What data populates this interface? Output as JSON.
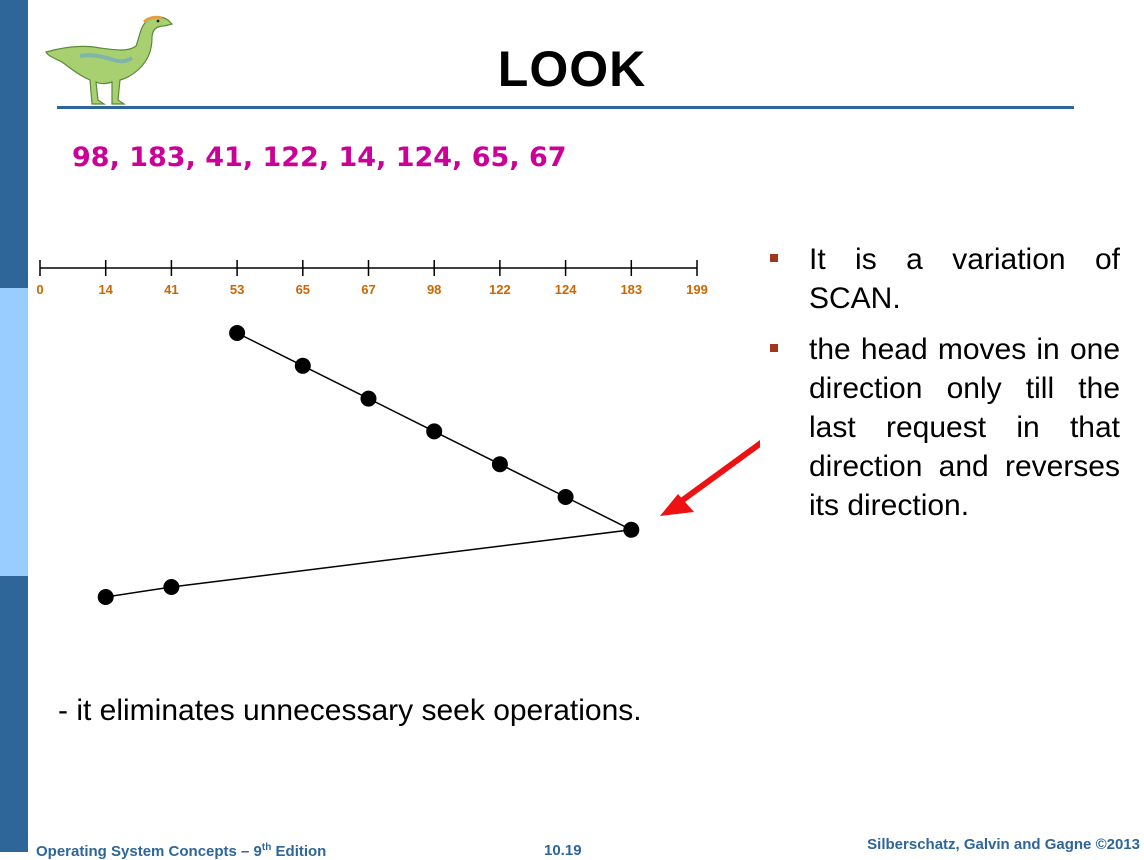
{
  "slide": {
    "title": "LOOK",
    "request_sequence": "98, 183, 41, 122, 14, 124, 65, 67",
    "bullets": [
      "It is a variation of SCAN.",
      "the head moves in one direction only till the last request in that direction and reverses its direction."
    ],
    "note": "- it eliminates unnecessary seek operations.",
    "footer": {
      "left_prefix": "Operating System Concepts – 9",
      "left_sup": "th",
      "left_suffix": " Edition",
      "center": "10.19",
      "right": "Silberschatz, Galvin and Gagne ©2013"
    }
  },
  "colors": {
    "sidebar_dark": "#2e6699",
    "sidebar_light": "#99ccff",
    "title_rule": "#2e6699",
    "sequence_text": "#cc0099",
    "axis_labels": "#cc6600",
    "bullet_marker": "#a0361a",
    "footer_text": "#2e6699",
    "arrow": "#ee1111"
  },
  "icons": {
    "logo": "dinosaur-logo-icon",
    "arrow": "red-arrow-icon"
  },
  "chart_data": {
    "type": "line",
    "ticks": [
      0,
      14,
      41,
      53,
      65,
      67,
      98,
      122,
      124,
      183,
      199
    ],
    "x": [
      53,
      65,
      67,
      98,
      122,
      124,
      183,
      41,
      14
    ],
    "xlim": [
      0,
      199
    ]
  }
}
